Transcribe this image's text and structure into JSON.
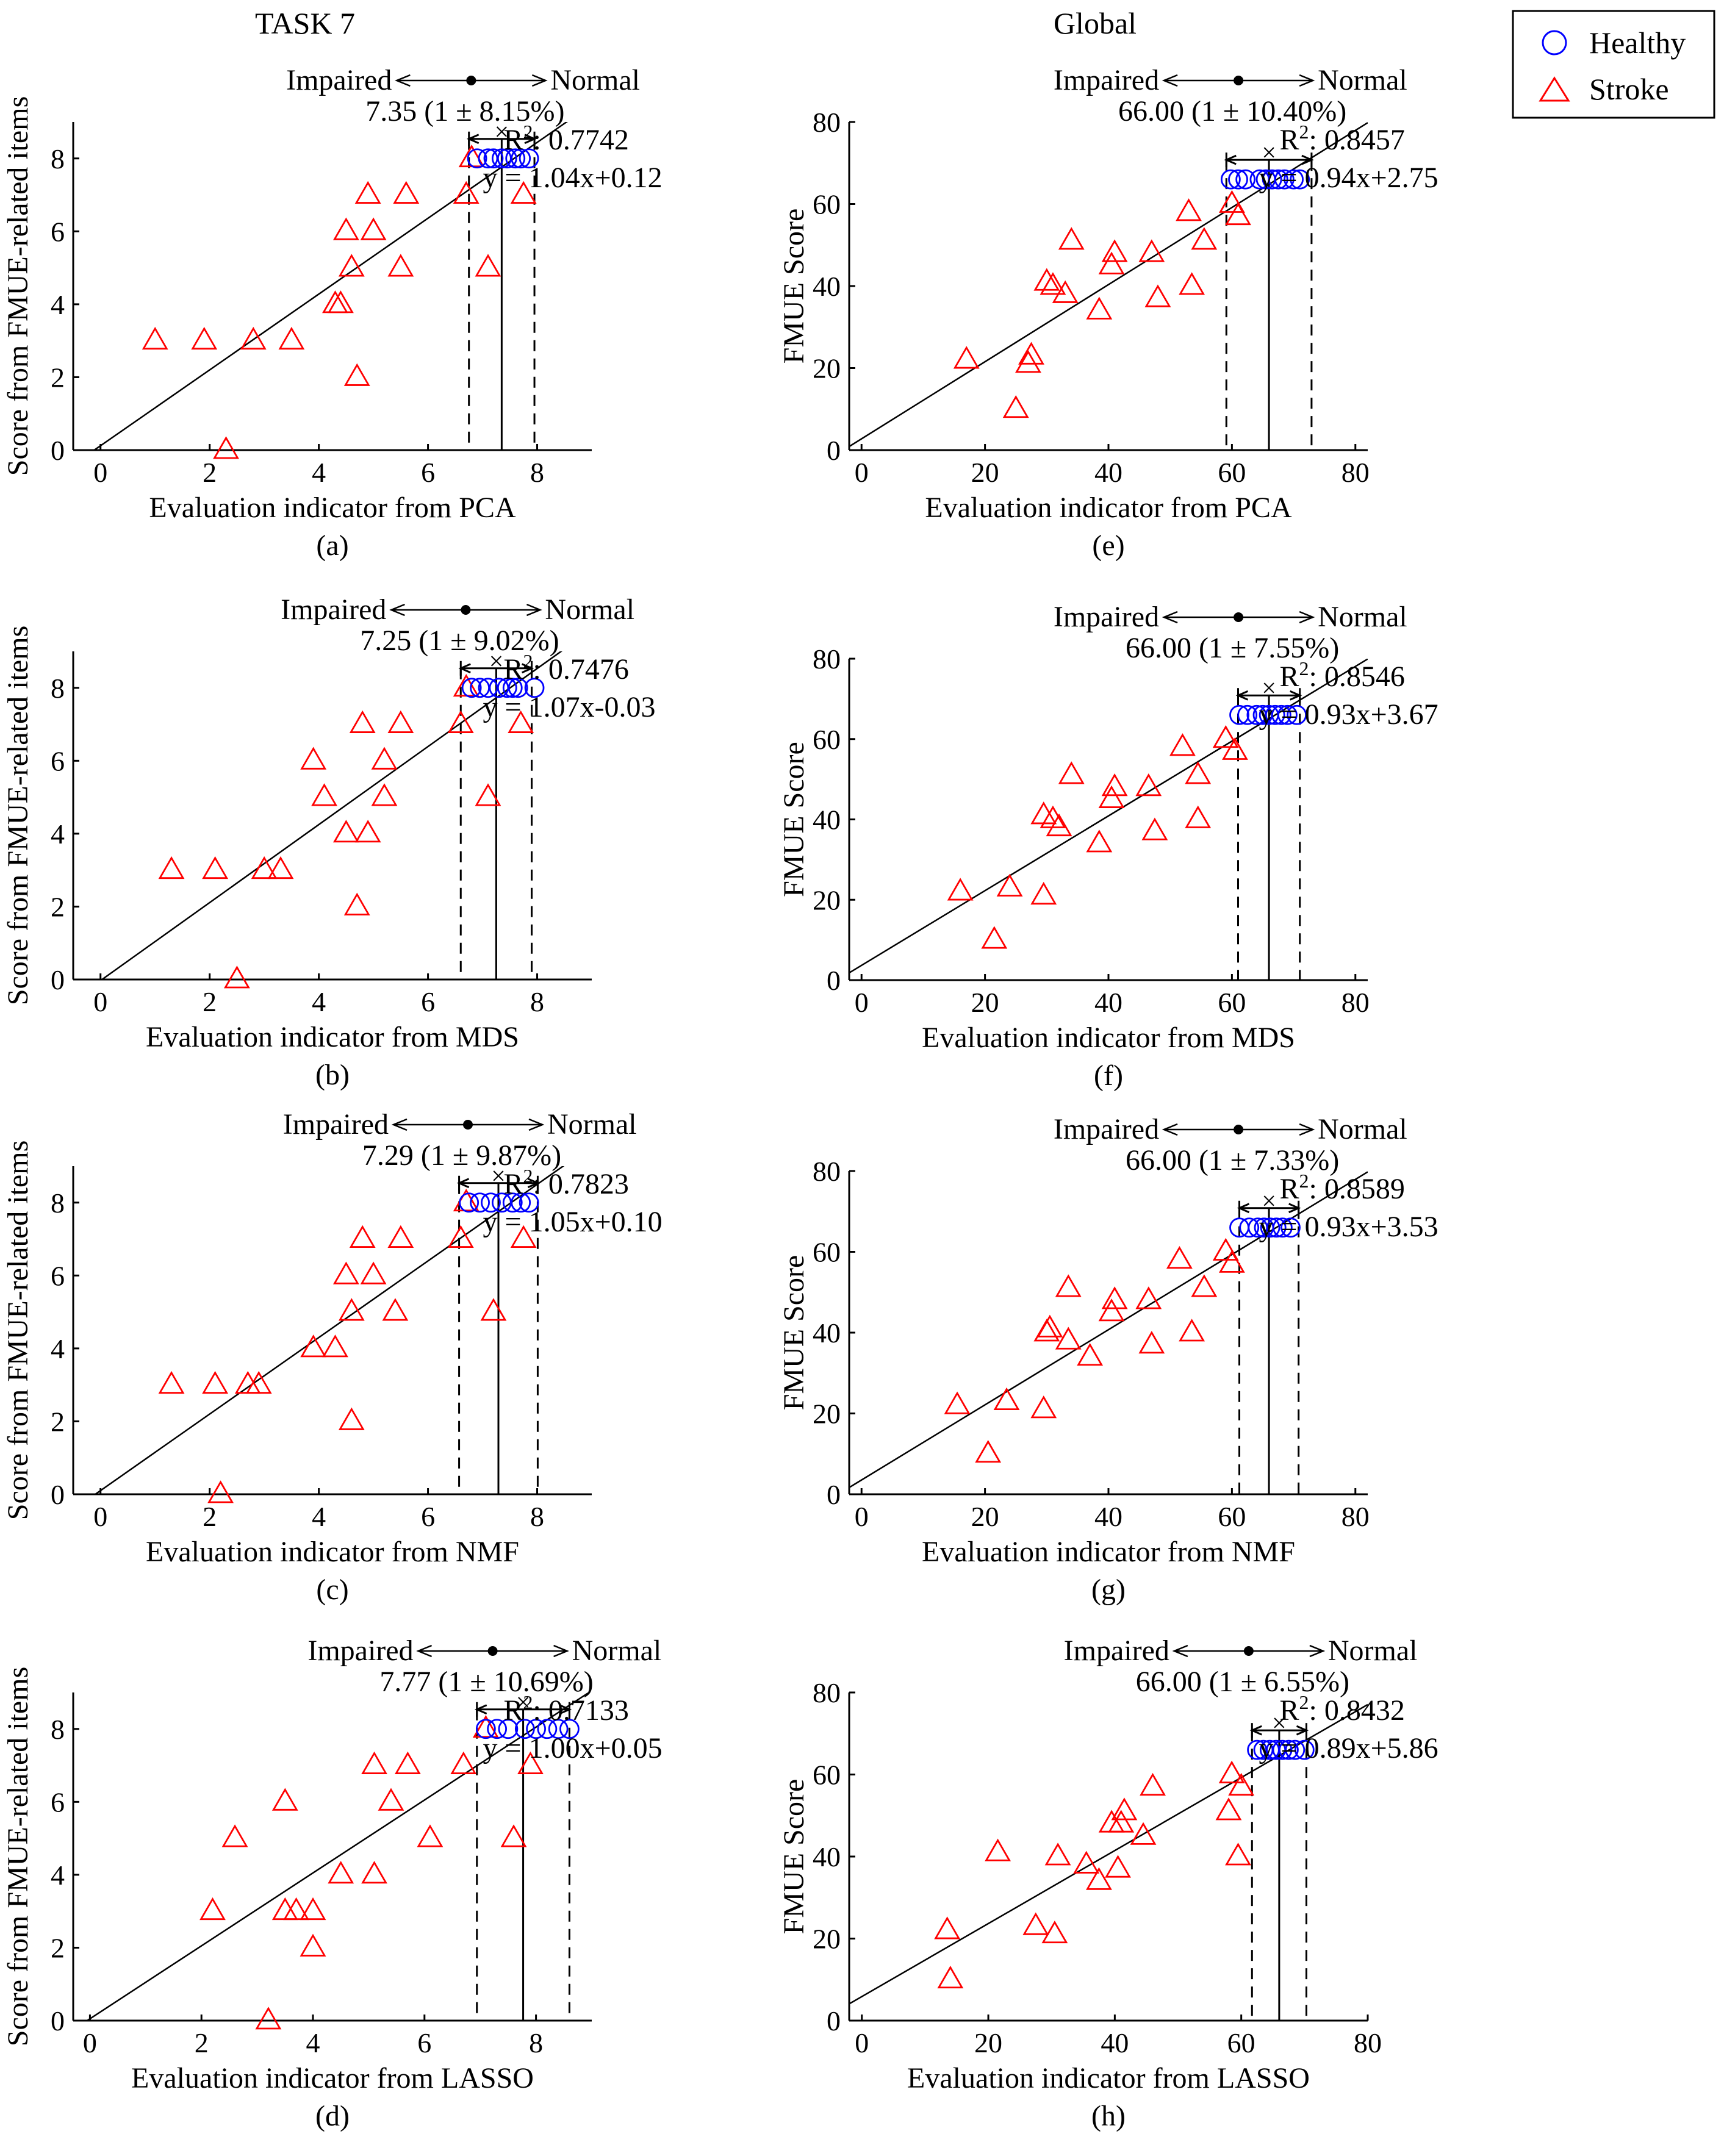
{
  "column_titles": [
    "TASK 7",
    "Global"
  ],
  "legend": {
    "items": [
      {
        "label": "Healthy",
        "marker": "circle",
        "color": "#0000ff"
      },
      {
        "label": "Stroke",
        "marker": "triangle",
        "color": "#ff0000"
      }
    ]
  },
  "annotation_words": {
    "left": "Impaired",
    "right": "Normal"
  },
  "chart_data": [
    {
      "type": "scatter",
      "panel": "(a)",
      "xlabel": "Evaluation indicator from PCA",
      "ylabel": "Score from FMUE-related items",
      "xlim": [
        -0.5,
        9
      ],
      "ylim": [
        0,
        9
      ],
      "xticks": [
        0,
        2,
        4,
        6,
        8
      ],
      "yticks": [
        0,
        2,
        4,
        6,
        8
      ],
      "threshold_text": "7.35 (1 ± 8.15%)",
      "r2": "0.7742",
      "equation": "y = 1.04x+0.12",
      "center": 7.35,
      "lower": 6.75,
      "upper": 7.95,
      "slope": 1.04,
      "intercept": 0.12,
      "healthy": [
        [
          6.9,
          8
        ],
        [
          7.1,
          8
        ],
        [
          7.2,
          8
        ],
        [
          7.35,
          8
        ],
        [
          7.45,
          8
        ],
        [
          7.6,
          8
        ],
        [
          7.7,
          8
        ],
        [
          7.85,
          8
        ]
      ],
      "stroke": [
        [
          1.0,
          3
        ],
        [
          1.9,
          3
        ],
        [
          2.3,
          0
        ],
        [
          2.8,
          3
        ],
        [
          3.5,
          3
        ],
        [
          4.3,
          4
        ],
        [
          4.4,
          4
        ],
        [
          4.5,
          6
        ],
        [
          4.6,
          5
        ],
        [
          4.7,
          2
        ],
        [
          4.9,
          7
        ],
        [
          5.0,
          6
        ],
        [
          5.5,
          5
        ],
        [
          5.6,
          7
        ],
        [
          6.7,
          7
        ],
        [
          6.8,
          8
        ],
        [
          7.1,
          5
        ],
        [
          7.75,
          7
        ]
      ]
    },
    {
      "type": "scatter",
      "panel": "(b)",
      "xlabel": "Evaluation indicator from MDS",
      "ylabel": "Score from FMUE-related items",
      "xlim": [
        -0.5,
        9
      ],
      "ylim": [
        0,
        9
      ],
      "xticks": [
        0,
        2,
        4,
        6,
        8
      ],
      "yticks": [
        0,
        2,
        4,
        6,
        8
      ],
      "threshold_text": "7.25 (1 ± 9.02%)",
      "r2": "0.7476",
      "equation": "y = 1.07x-0.03",
      "center": 7.25,
      "lower": 6.6,
      "upper": 7.9,
      "slope": 1.07,
      "intercept": -0.03,
      "healthy": [
        [
          6.8,
          8
        ],
        [
          6.95,
          8
        ],
        [
          7.1,
          8
        ],
        [
          7.3,
          8
        ],
        [
          7.45,
          8
        ],
        [
          7.55,
          8
        ],
        [
          7.65,
          8
        ],
        [
          7.95,
          8
        ]
      ],
      "stroke": [
        [
          1.3,
          3
        ],
        [
          2.1,
          3
        ],
        [
          2.5,
          0
        ],
        [
          3.0,
          3
        ],
        [
          3.3,
          3
        ],
        [
          3.9,
          6
        ],
        [
          4.1,
          5
        ],
        [
          4.5,
          4
        ],
        [
          4.7,
          2
        ],
        [
          4.8,
          7
        ],
        [
          4.9,
          4
        ],
        [
          5.2,
          6
        ],
        [
          5.2,
          5
        ],
        [
          5.5,
          7
        ],
        [
          6.6,
          7
        ],
        [
          6.7,
          8
        ],
        [
          7.1,
          5
        ],
        [
          7.7,
          7
        ]
      ]
    },
    {
      "type": "scatter",
      "panel": "(c)",
      "xlabel": "Evaluation indicator from NMF",
      "ylabel": "Score from FMUE-related items",
      "xlim": [
        -0.5,
        9
      ],
      "ylim": [
        0,
        9
      ],
      "xticks": [
        0,
        2,
        4,
        6,
        8
      ],
      "yticks": [
        0,
        2,
        4,
        6,
        8
      ],
      "threshold_text": "7.29 (1 ± 9.87%)",
      "r2": "0.7823",
      "equation": "y = 1.05x+0.10",
      "center": 7.29,
      "lower": 6.57,
      "upper": 8.01,
      "slope": 1.05,
      "intercept": 0.1,
      "healthy": [
        [
          6.75,
          8
        ],
        [
          6.95,
          8
        ],
        [
          7.15,
          8
        ],
        [
          7.35,
          8
        ],
        [
          7.55,
          8
        ],
        [
          7.7,
          8
        ],
        [
          7.85,
          8
        ]
      ],
      "stroke": [
        [
          1.3,
          3
        ],
        [
          2.1,
          3
        ],
        [
          2.2,
          0
        ],
        [
          2.7,
          3
        ],
        [
          2.9,
          3
        ],
        [
          3.9,
          4
        ],
        [
          4.3,
          4
        ],
        [
          4.5,
          6
        ],
        [
          4.6,
          5
        ],
        [
          4.6,
          2
        ],
        [
          4.8,
          7
        ],
        [
          5.0,
          6
        ],
        [
          5.4,
          5
        ],
        [
          5.5,
          7
        ],
        [
          6.6,
          7
        ],
        [
          6.7,
          8
        ],
        [
          7.2,
          5
        ],
        [
          7.75,
          7
        ]
      ]
    },
    {
      "type": "scatter",
      "panel": "(d)",
      "xlabel": "Evaluation indicator from LASSO",
      "ylabel": "Score from FMUE-related items",
      "xlim": [
        -0.3,
        9
      ],
      "ylim": [
        0,
        9
      ],
      "xticks": [
        0,
        2,
        4,
        6,
        8
      ],
      "yticks": [
        0,
        2,
        4,
        6,
        8
      ],
      "threshold_text": "7.77 (1 ± 10.69%)",
      "r2": "0.7133",
      "equation": "y = 1.00x+0.05",
      "center": 7.77,
      "lower": 6.94,
      "upper": 8.6,
      "slope": 1.0,
      "intercept": 0.05,
      "healthy": [
        [
          7.1,
          8
        ],
        [
          7.3,
          8
        ],
        [
          7.5,
          8
        ],
        [
          7.8,
          8
        ],
        [
          8.0,
          8
        ],
        [
          8.2,
          8
        ],
        [
          8.4,
          8
        ],
        [
          8.6,
          8
        ]
      ],
      "stroke": [
        [
          2.2,
          3
        ],
        [
          2.6,
          5
        ],
        [
          3.2,
          0
        ],
        [
          3.5,
          6
        ],
        [
          3.5,
          3
        ],
        [
          3.7,
          3
        ],
        [
          4.0,
          3
        ],
        [
          4.0,
          2
        ],
        [
          4.5,
          4
        ],
        [
          5.1,
          4
        ],
        [
          5.1,
          7
        ],
        [
          5.4,
          6
        ],
        [
          5.7,
          7
        ],
        [
          6.1,
          5
        ],
        [
          6.7,
          7
        ],
        [
          7.1,
          8
        ],
        [
          7.6,
          5
        ],
        [
          7.9,
          7
        ]
      ]
    },
    {
      "type": "scatter",
      "panel": "(e)",
      "xlabel": "Evaluation indicator from PCA",
      "ylabel": "FMUE Score",
      "xlim": [
        -2,
        82
      ],
      "ylim": [
        0,
        80
      ],
      "xticks": [
        0,
        20,
        40,
        60,
        80
      ],
      "yticks": [
        0,
        20,
        40,
        60,
        80
      ],
      "threshold_text": "66.00 (1 ± 10.40%)",
      "r2": "0.8457",
      "equation": "y = 0.94x+2.75",
      "center": 66,
      "lower": 59.1,
      "upper": 72.9,
      "slope": 0.94,
      "intercept": 2.75,
      "healthy": [
        [
          59.8,
          66
        ],
        [
          61,
          66
        ],
        [
          62.2,
          66
        ],
        [
          64.5,
          66
        ],
        [
          65.5,
          66
        ],
        [
          66.5,
          66
        ],
        [
          67.5,
          66
        ],
        [
          68.5,
          66
        ],
        [
          70,
          66
        ],
        [
          71,
          66
        ]
      ],
      "stroke": [
        [
          17,
          22
        ],
        [
          25,
          10
        ],
        [
          27,
          21
        ],
        [
          27.5,
          23
        ],
        [
          30,
          41
        ],
        [
          31,
          40
        ],
        [
          33,
          38
        ],
        [
          34,
          51
        ],
        [
          38.5,
          34
        ],
        [
          40.5,
          45
        ],
        [
          41,
          48
        ],
        [
          47,
          48
        ],
        [
          48,
          37
        ],
        [
          53,
          58
        ],
        [
          53.5,
          40
        ],
        [
          55.5,
          51
        ],
        [
          60,
          60
        ],
        [
          61,
          57
        ]
      ]
    },
    {
      "type": "scatter",
      "panel": "(f)",
      "xlabel": "Evaluation indicator from MDS",
      "ylabel": "FMUE Score",
      "xlim": [
        -2,
        82
      ],
      "ylim": [
        0,
        80
      ],
      "xticks": [
        0,
        20,
        40,
        60,
        80
      ],
      "yticks": [
        0,
        20,
        40,
        60,
        80
      ],
      "threshold_text": "66.00 (1 ± 7.55%)",
      "r2": "0.8546",
      "equation": "y = 0.93x+3.67",
      "center": 66,
      "lower": 61,
      "upper": 71,
      "slope": 0.93,
      "intercept": 3.67,
      "healthy": [
        [
          61.2,
          66
        ],
        [
          62.5,
          66
        ],
        [
          64,
          66
        ],
        [
          65,
          66
        ],
        [
          66,
          66
        ],
        [
          67,
          66
        ],
        [
          68,
          66
        ],
        [
          69,
          66
        ],
        [
          70.5,
          66
        ]
      ],
      "stroke": [
        [
          16,
          22
        ],
        [
          21.5,
          10
        ],
        [
          24,
          23
        ],
        [
          29.5,
          21
        ],
        [
          29.5,
          41
        ],
        [
          31,
          40
        ],
        [
          32,
          38
        ],
        [
          34,
          51
        ],
        [
          38.5,
          34
        ],
        [
          40.5,
          45
        ],
        [
          41,
          48
        ],
        [
          46.5,
          48
        ],
        [
          47.5,
          37
        ],
        [
          52,
          58
        ],
        [
          54.5,
          51
        ],
        [
          54.5,
          40
        ],
        [
          59,
          60
        ],
        [
          60.5,
          57
        ]
      ]
    },
    {
      "type": "scatter",
      "panel": "(g)",
      "xlabel": "Evaluation indicator from NMF",
      "ylabel": "FMUE Score",
      "xlim": [
        -2,
        82
      ],
      "ylim": [
        0,
        80
      ],
      "xticks": [
        0,
        20,
        40,
        60,
        80
      ],
      "yticks": [
        0,
        20,
        40,
        60,
        80
      ],
      "threshold_text": "66.00 (1 ± 7.33%)",
      "r2": "0.8589",
      "equation": "y = 0.93x+3.53",
      "center": 66,
      "lower": 61.2,
      "upper": 70.8,
      "slope": 0.93,
      "intercept": 3.53,
      "healthy": [
        [
          61.2,
          66
        ],
        [
          62.8,
          66
        ],
        [
          64.2,
          66
        ],
        [
          65.2,
          66
        ],
        [
          66.2,
          66
        ],
        [
          67.2,
          66
        ],
        [
          68.2,
          66
        ],
        [
          69.5,
          66
        ]
      ],
      "stroke": [
        [
          15.5,
          22
        ],
        [
          20.5,
          10
        ],
        [
          23.5,
          23
        ],
        [
          29.5,
          21
        ],
        [
          30,
          40
        ],
        [
          30.5,
          41
        ],
        [
          33.5,
          38
        ],
        [
          33.5,
          51
        ],
        [
          37,
          34
        ],
        [
          40.5,
          45
        ],
        [
          41,
          48
        ],
        [
          46.5,
          48
        ],
        [
          47,
          37
        ],
        [
          51.5,
          58
        ],
        [
          53.5,
          40
        ],
        [
          55.5,
          51
        ],
        [
          59,
          60
        ],
        [
          60,
          57
        ]
      ]
    },
    {
      "type": "scatter",
      "panel": "(h)",
      "xlabel": "Evaluation indicator from LASSO",
      "ylabel": "FMUE Score",
      "xlim": [
        -2,
        80
      ],
      "ylim": [
        0,
        80
      ],
      "xticks": [
        0,
        20,
        40,
        60,
        80
      ],
      "yticks": [
        0,
        20,
        40,
        60,
        80
      ],
      "threshold_text": "66.00 (1 ± 6.55%)",
      "r2": "0.8432",
      "equation": "y = 0.89x+5.86",
      "center": 66,
      "lower": 61.7,
      "upper": 70.3,
      "slope": 0.89,
      "intercept": 5.86,
      "healthy": [
        [
          62.5,
          66
        ],
        [
          63.5,
          66
        ],
        [
          64.5,
          66
        ],
        [
          65.5,
          66
        ],
        [
          66.5,
          66
        ],
        [
          67.5,
          66
        ],
        [
          68.5,
          66
        ],
        [
          70,
          66
        ]
      ],
      "stroke": [
        [
          13.5,
          22
        ],
        [
          14,
          10
        ],
        [
          21.5,
          41
        ],
        [
          27.5,
          23
        ],
        [
          30.5,
          21
        ],
        [
          31,
          40
        ],
        [
          35.5,
          38
        ],
        [
          37.5,
          34
        ],
        [
          39.5,
          48
        ],
        [
          40.5,
          37
        ],
        [
          41,
          48
        ],
        [
          41.5,
          51
        ],
        [
          44.5,
          45
        ],
        [
          46,
          57
        ],
        [
          58,
          51
        ],
        [
          58.5,
          60
        ],
        [
          59.5,
          40
        ],
        [
          60,
          57
        ]
      ]
    }
  ]
}
